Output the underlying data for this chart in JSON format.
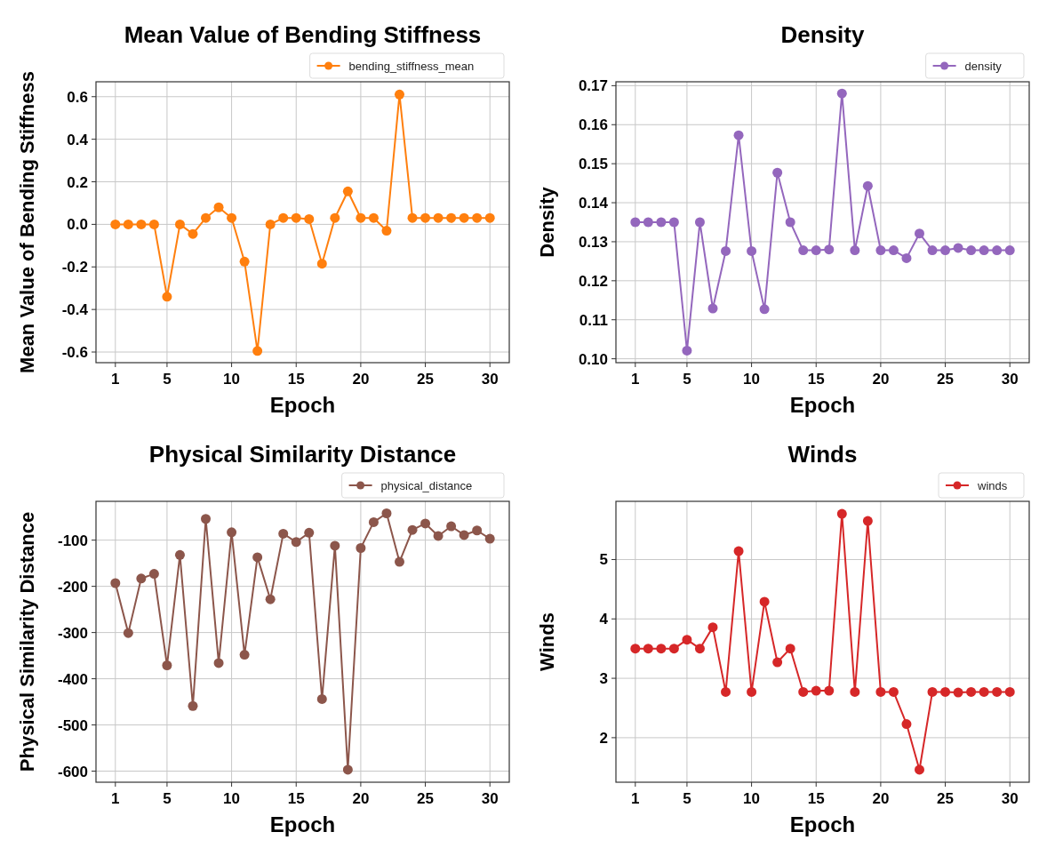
{
  "chart_data": [
    {
      "type": "line",
      "title": "Mean Value of Bending Stiffness",
      "xlabel": "Epoch",
      "ylabel": "Mean Value of Bending Stiffness",
      "x": [
        1,
        2,
        3,
        4,
        5,
        6,
        7,
        8,
        9,
        10,
        11,
        12,
        13,
        14,
        15,
        16,
        17,
        18,
        19,
        20,
        21,
        22,
        23,
        24,
        25,
        26,
        27,
        28,
        29,
        30
      ],
      "xlim": [
        -0.5,
        31.5
      ],
      "xticks": [
        1,
        5,
        10,
        15,
        20,
        25,
        30
      ],
      "ylim": [
        -0.65,
        0.67
      ],
      "yticks": [
        -0.6,
        -0.4,
        -0.2,
        {
          "value": 0,
          "label": "0.0"
        },
        0.2,
        0.4,
        0.6
      ],
      "grid": true,
      "legend": "top right",
      "marker": "circle",
      "series": [
        {
          "name": "bending_stiffness_mean",
          "color": "#ff7f0e",
          "values": [
            0,
            0,
            0,
            0,
            -0.34,
            0,
            -0.045,
            0.03,
            0.08,
            0.03,
            -0.175,
            -0.595,
            0,
            0.03,
            0.03,
            0.025,
            -0.185,
            0.03,
            0.155,
            0.03,
            0.03,
            -0.03,
            0.61,
            0.03,
            0.03,
            0.03,
            0.03,
            0.03,
            0.03,
            0.03
          ]
        }
      ]
    },
    {
      "type": "line",
      "title": "Density",
      "xlabel": "Epoch",
      "ylabel": "Density",
      "x": [
        1,
        2,
        3,
        4,
        5,
        6,
        7,
        8,
        9,
        10,
        11,
        12,
        13,
        14,
        15,
        16,
        17,
        18,
        19,
        20,
        21,
        22,
        23,
        24,
        25,
        26,
        27,
        28,
        29,
        30
      ],
      "xlim": [
        -0.5,
        31.5
      ],
      "xticks": [
        1,
        5,
        10,
        15,
        20,
        25,
        30
      ],
      "ylim": [
        0.099,
        0.171
      ],
      "yticks": [
        {
          "value": 0.1,
          "label": "0.10"
        },
        0.11,
        0.12,
        0.13,
        0.14,
        0.15,
        0.16,
        0.17
      ],
      "grid": true,
      "legend": "top right",
      "marker": "circle",
      "series": [
        {
          "name": "density",
          "color": "#9467bd",
          "values": [
            0.135,
            0.135,
            0.135,
            0.135,
            0.1021,
            0.135,
            0.1129,
            0.1276,
            0.1573,
            0.1276,
            0.1127,
            0.1477,
            0.135,
            0.1278,
            0.1278,
            0.128,
            0.168,
            0.1278,
            0.1443,
            0.1278,
            0.1278,
            0.1258,
            0.1321,
            0.1278,
            0.1278,
            0.1284,
            0.1278,
            0.1278,
            0.1278,
            0.1278
          ]
        }
      ]
    },
    {
      "type": "line",
      "title": "Physical Similarity Distance",
      "xlabel": "Epoch",
      "ylabel": "Physical Similarity Distance",
      "x": [
        1,
        2,
        3,
        4,
        5,
        6,
        7,
        8,
        9,
        10,
        11,
        12,
        13,
        14,
        15,
        16,
        17,
        18,
        19,
        20,
        21,
        22,
        23,
        24,
        25,
        26,
        27,
        28,
        29,
        30
      ],
      "xlim": [
        -0.5,
        31.5
      ],
      "xticks": [
        1,
        5,
        10,
        15,
        20,
        25,
        30
      ],
      "ylim": [
        -624,
        -16
      ],
      "yticks": [
        -600,
        -500,
        -400,
        -300,
        -200,
        -100
      ],
      "grid": true,
      "legend": "top right",
      "marker": "circle",
      "series": [
        {
          "name": "physical_distance",
          "color": "#8c564b",
          "values": [
            -193,
            -301,
            -183,
            -173,
            -371,
            -132,
            -459,
            -54,
            -366,
            -83,
            -348,
            -137,
            -228,
            -86,
            -104,
            -84,
            -444,
            -112,
            -597,
            -117,
            -61,
            -42,
            -147,
            -78,
            -64,
            -91,
            -70,
            -89,
            -79,
            -97
          ]
        }
      ]
    },
    {
      "type": "line",
      "title": "Winds",
      "xlabel": "Epoch",
      "ylabel": "Winds",
      "x": [
        1,
        2,
        3,
        4,
        5,
        6,
        7,
        8,
        9,
        10,
        11,
        12,
        13,
        14,
        15,
        16,
        17,
        18,
        19,
        20,
        21,
        22,
        23,
        24,
        25,
        26,
        27,
        28,
        29,
        30
      ],
      "xlim": [
        -0.5,
        31.5
      ],
      "xticks": [
        1,
        5,
        10,
        15,
        20,
        25,
        30
      ],
      "ylim": [
        1.25,
        5.98
      ],
      "yticks": [
        2,
        3,
        4,
        5
      ],
      "grid": true,
      "legend": "top right",
      "marker": "circle",
      "series": [
        {
          "name": "winds",
          "color": "#d62728",
          "values": [
            3.5,
            3.5,
            3.5,
            3.5,
            3.65,
            3.5,
            3.86,
            2.77,
            5.14,
            2.77,
            4.29,
            3.27,
            3.5,
            2.77,
            2.79,
            2.79,
            5.77,
            2.77,
            5.65,
            2.77,
            2.77,
            2.23,
            1.46,
            2.77,
            2.77,
            2.76,
            2.77,
            2.77,
            2.77,
            2.77
          ]
        }
      ]
    }
  ]
}
